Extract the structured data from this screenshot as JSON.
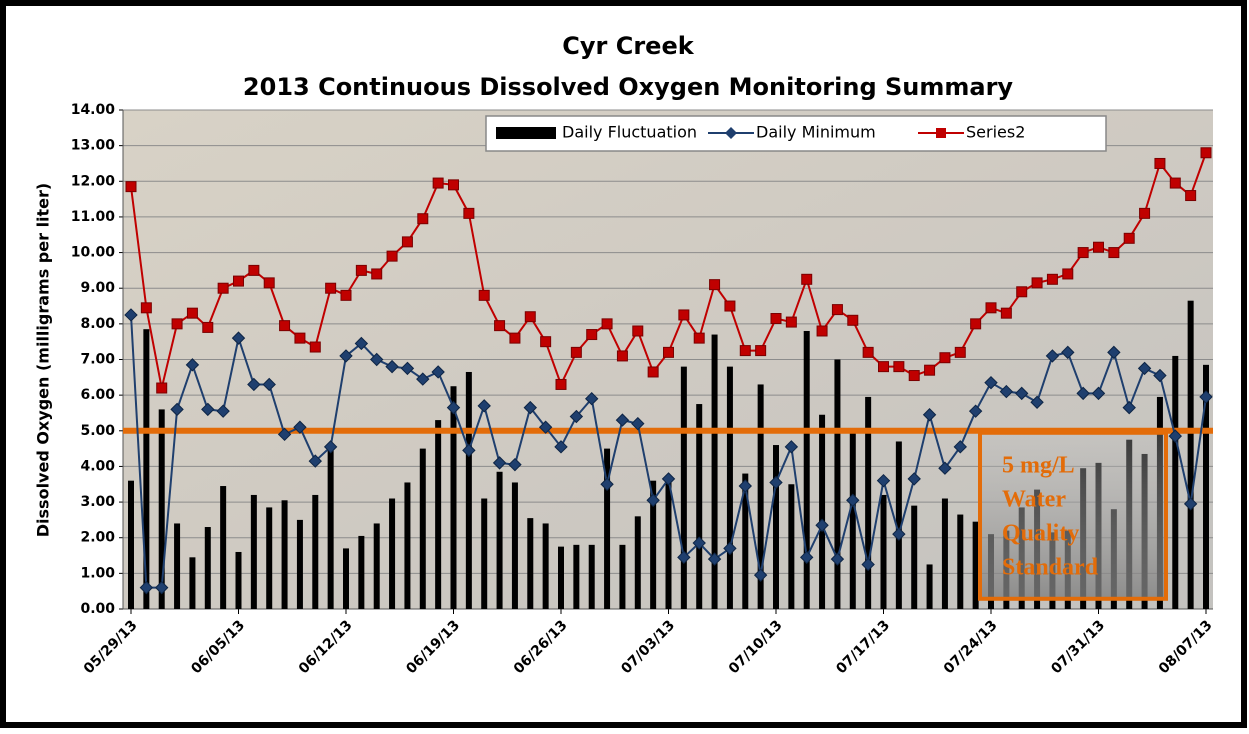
{
  "chart_data": {
    "type": "bar-line",
    "title": [
      "Cyr Creek",
      "2013 Continuous Dissolved Oxygen Monitoring Summary"
    ],
    "ylabel": "Dissolved Oxygen (milligrams per liter)",
    "categories": [
      "05/29/13",
      null,
      null,
      null,
      null,
      null,
      null,
      "06/05/13",
      null,
      null,
      null,
      null,
      null,
      null,
      "06/12/13",
      null,
      null,
      null,
      null,
      null,
      null,
      "06/19/13",
      null,
      null,
      null,
      null,
      null,
      null,
      "06/26/13",
      null,
      null,
      null,
      null,
      null,
      null,
      "07/03/13",
      null,
      null,
      null,
      null,
      null,
      null,
      "07/10/13",
      null,
      null,
      null,
      null,
      null,
      null,
      "07/17/13",
      null,
      null,
      null,
      null,
      null,
      null,
      "07/24/13",
      null,
      null,
      null,
      null,
      null,
      null,
      "07/31/13",
      null,
      null,
      null,
      null,
      null,
      null,
      "08/07/13"
    ],
    "series": [
      {
        "name": "Daily Fluctuation",
        "kind": "bar",
        "color": "#000000",
        "values": [
          3.6,
          7.85,
          5.6,
          2.4,
          1.45,
          2.3,
          3.45,
          1.6,
          3.2,
          2.85,
          3.05,
          2.5,
          3.2,
          4.45,
          1.7,
          2.05,
          2.4,
          3.1,
          3.55,
          4.5,
          5.3,
          6.25,
          6.65,
          3.1,
          3.85,
          3.55,
          2.55,
          2.4,
          1.75,
          1.8,
          1.8,
          4.5,
          1.8,
          2.6,
          3.6,
          3.55,
          6.8,
          5.75,
          7.7,
          6.8,
          3.8,
          6.3,
          4.6,
          3.5,
          7.8,
          5.45,
          7.0,
          5.05,
          5.95,
          3.2,
          4.7,
          2.9,
          1.25,
          3.1,
          2.65,
          2.45,
          2.1,
          2.2,
          2.85,
          3.35,
          2.15,
          2.2,
          3.95,
          4.1,
          2.8,
          4.75,
          4.35,
          5.95,
          7.1,
          8.65,
          6.85
        ]
      },
      {
        "name": "Daily Minimum",
        "kind": "line",
        "marker": "diamond",
        "color": "#1f3f6e",
        "values": [
          8.25,
          0.6,
          0.6,
          5.6,
          6.85,
          5.6,
          5.55,
          7.6,
          6.3,
          6.3,
          4.9,
          5.1,
          4.15,
          4.55,
          7.1,
          7.45,
          7.0,
          6.8,
          6.75,
          6.45,
          6.65,
          5.65,
          4.45,
          5.7,
          4.1,
          4.05,
          5.65,
          5.1,
          4.55,
          5.4,
          5.9,
          3.5,
          5.3,
          5.2,
          3.05,
          3.65,
          1.45,
          1.85,
          1.4,
          1.7,
          3.45,
          0.95,
          3.55,
          4.55,
          1.45,
          2.35,
          1.4,
          3.05,
          1.25,
          3.6,
          2.1,
          3.65,
          5.45,
          3.95,
          4.55,
          5.55,
          6.35,
          6.1,
          6.05,
          5.8,
          7.1,
          7.2,
          6.05,
          6.05,
          7.2,
          5.65,
          6.75,
          6.55,
          4.85,
          2.95,
          5.95
        ]
      },
      {
        "name": "Series2",
        "kind": "line",
        "marker": "square",
        "color": "#c00000",
        "values": [
          11.85,
          8.45,
          6.2,
          8.0,
          8.3,
          7.9,
          9.0,
          9.2,
          9.5,
          9.15,
          7.95,
          7.6,
          7.35,
          9.0,
          8.8,
          9.5,
          9.4,
          9.9,
          10.3,
          10.95,
          11.95,
          11.9,
          11.1,
          8.8,
          7.95,
          7.6,
          8.2,
          7.5,
          6.3,
          7.2,
          7.7,
          8.0,
          7.1,
          7.8,
          6.65,
          7.2,
          8.25,
          7.6,
          9.1,
          8.5,
          7.25,
          7.25,
          8.15,
          8.05,
          9.25,
          7.8,
          8.4,
          8.1,
          7.2,
          6.8,
          6.8,
          6.55,
          6.7,
          7.05,
          7.2,
          8.0,
          8.45,
          8.3,
          8.9,
          9.15,
          9.25,
          9.4,
          10.0,
          10.15,
          10.0,
          10.4,
          11.1,
          12.5,
          11.95,
          11.6,
          12.8
        ]
      }
    ],
    "threshold": {
      "value": 5,
      "color": "#e36c09"
    },
    "annotation": [
      "5 mg/L",
      "Water",
      "Quality",
      "Standard"
    ],
    "ylim": [
      0,
      14
    ],
    "yticks": [
      {
        "value": 0,
        "label": "0.00"
      },
      {
        "value": 1,
        "label": "1.00"
      },
      {
        "value": 2,
        "label": "2.00"
      },
      {
        "value": 3,
        "label": "3.00"
      },
      {
        "value": 4,
        "label": "4.00"
      },
      {
        "value": 5,
        "label": "5.00"
      },
      {
        "value": 6,
        "label": "6.00"
      },
      {
        "value": 7,
        "label": "7.00"
      },
      {
        "value": 8,
        "label": "8.00"
      },
      {
        "value": 9,
        "label": "9.00"
      },
      {
        "value": 10,
        "label": "10.00"
      },
      {
        "value": 11,
        "label": "11.00"
      },
      {
        "value": 12,
        "label": "12.00"
      },
      {
        "value": 13,
        "label": "13.00"
      },
      {
        "value": 14,
        "label": "14.00"
      }
    ],
    "grid": true,
    "legend": "top"
  }
}
